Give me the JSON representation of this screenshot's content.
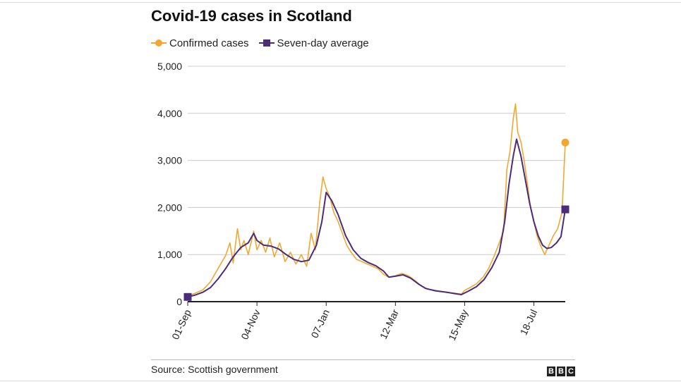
{
  "header": {
    "title": "Covid-19 cases in Scotland"
  },
  "footer": {
    "source": "Source: Scottish government",
    "logo_letters": [
      "B",
      "B",
      "C"
    ]
  },
  "colors": {
    "confirmed": "#f0a830",
    "average": "#4b2c79",
    "grid": "#cccccc",
    "axis": "#222222"
  },
  "chart_data": {
    "type": "line",
    "title": "Covid-19 cases in Scotland",
    "xlabel": "",
    "ylabel": "",
    "ylim": [
      0,
      5000
    ],
    "y_ticks": [
      0,
      1000,
      2000,
      3000,
      4000,
      5000
    ],
    "y_tick_labels": [
      "0",
      "1,000",
      "2,000",
      "3,000",
      "4,000",
      "5,000"
    ],
    "x_ticks": [
      "2020-09-01",
      "2020-11-04",
      "2021-01-07",
      "2021-03-12",
      "2021-05-15",
      "2021-07-18"
    ],
    "x_tick_labels": [
      "01-Sep",
      "04-Nov",
      "07-Jan",
      "12-Mar",
      "15-May",
      "18-Jul"
    ],
    "x_range": [
      "2020-09-01",
      "2021-08-16"
    ],
    "grid": true,
    "legend": "top-left",
    "series": [
      {
        "name": "Confirmed cases",
        "marker": "circle",
        "points": [
          [
            "2020-09-01",
            120
          ],
          [
            "2020-09-08",
            180
          ],
          [
            "2020-09-15",
            250
          ],
          [
            "2020-09-22",
            420
          ],
          [
            "2020-09-29",
            700
          ],
          [
            "2020-10-06",
            980
          ],
          [
            "2020-10-10",
            1250
          ],
          [
            "2020-10-13",
            820
          ],
          [
            "2020-10-17",
            1550
          ],
          [
            "2020-10-20",
            1100
          ],
          [
            "2020-10-23",
            1300
          ],
          [
            "2020-10-27",
            1000
          ],
          [
            "2020-11-01",
            1500
          ],
          [
            "2020-11-04",
            1100
          ],
          [
            "2020-11-08",
            1300
          ],
          [
            "2020-11-12",
            1050
          ],
          [
            "2020-11-16",
            1350
          ],
          [
            "2020-11-20",
            950
          ],
          [
            "2020-11-25",
            1250
          ],
          [
            "2020-11-30",
            850
          ],
          [
            "2020-12-05",
            1050
          ],
          [
            "2020-12-10",
            800
          ],
          [
            "2020-12-15",
            1000
          ],
          [
            "2020-12-20",
            750
          ],
          [
            "2020-12-24",
            1450
          ],
          [
            "2020-12-28",
            1100
          ],
          [
            "2021-01-01",
            2100
          ],
          [
            "2021-01-04",
            2650
          ],
          [
            "2021-01-07",
            2400
          ],
          [
            "2021-01-10",
            2250
          ],
          [
            "2021-01-14",
            1900
          ],
          [
            "2021-01-18",
            1700
          ],
          [
            "2021-01-22",
            1450
          ],
          [
            "2021-01-26",
            1200
          ],
          [
            "2021-01-30",
            1050
          ],
          [
            "2021-02-04",
            900
          ],
          [
            "2021-02-09",
            850
          ],
          [
            "2021-02-14",
            800
          ],
          [
            "2021-02-19",
            750
          ],
          [
            "2021-02-24",
            700
          ],
          [
            "2021-03-01",
            580
          ],
          [
            "2021-03-06",
            520
          ],
          [
            "2021-03-12",
            550
          ],
          [
            "2021-03-18",
            600
          ],
          [
            "2021-03-24",
            550
          ],
          [
            "2021-03-30",
            450
          ],
          [
            "2021-04-05",
            330
          ],
          [
            "2021-04-12",
            260
          ],
          [
            "2021-04-20",
            230
          ],
          [
            "2021-04-28",
            200
          ],
          [
            "2021-05-06",
            180
          ],
          [
            "2021-05-12",
            160
          ],
          [
            "2021-05-15",
            240
          ],
          [
            "2021-05-20",
            300
          ],
          [
            "2021-05-26",
            380
          ],
          [
            "2021-06-01",
            520
          ],
          [
            "2021-06-06",
            700
          ],
          [
            "2021-06-11",
            950
          ],
          [
            "2021-06-16",
            1250
          ],
          [
            "2021-06-20",
            1500
          ],
          [
            "2021-06-23",
            2800
          ],
          [
            "2021-06-26",
            3200
          ],
          [
            "2021-06-29",
            3900
          ],
          [
            "2021-07-01",
            4200
          ],
          [
            "2021-07-03",
            3600
          ],
          [
            "2021-07-06",
            3400
          ],
          [
            "2021-07-09",
            3000
          ],
          [
            "2021-07-12",
            2500
          ],
          [
            "2021-07-15",
            2000
          ],
          [
            "2021-07-18",
            1700
          ],
          [
            "2021-07-21",
            1400
          ],
          [
            "2021-07-24",
            1200
          ],
          [
            "2021-07-28",
            1000
          ],
          [
            "2021-08-01",
            1200
          ],
          [
            "2021-08-05",
            1400
          ],
          [
            "2021-08-09",
            1550
          ],
          [
            "2021-08-13",
            1900
          ],
          [
            "2021-08-16",
            3380
          ]
        ]
      },
      {
        "name": "Seven-day average",
        "marker": "square",
        "points": [
          [
            "2020-09-01",
            100
          ],
          [
            "2020-09-08",
            140
          ],
          [
            "2020-09-15",
            200
          ],
          [
            "2020-09-22",
            300
          ],
          [
            "2020-09-29",
            480
          ],
          [
            "2020-10-06",
            700
          ],
          [
            "2020-10-13",
            950
          ],
          [
            "2020-10-20",
            1150
          ],
          [
            "2020-10-27",
            1250
          ],
          [
            "2020-11-01",
            1450
          ],
          [
            "2020-11-04",
            1300
          ],
          [
            "2020-11-10",
            1200
          ],
          [
            "2020-11-17",
            1180
          ],
          [
            "2020-11-24",
            1120
          ],
          [
            "2020-12-01",
            1000
          ],
          [
            "2020-12-08",
            900
          ],
          [
            "2020-12-15",
            850
          ],
          [
            "2020-12-22",
            880
          ],
          [
            "2020-12-29",
            1200
          ],
          [
            "2021-01-03",
            1700
          ],
          [
            "2021-01-07",
            2320
          ],
          [
            "2021-01-12",
            2150
          ],
          [
            "2021-01-18",
            1850
          ],
          [
            "2021-01-25",
            1400
          ],
          [
            "2021-02-01",
            1100
          ],
          [
            "2021-02-08",
            920
          ],
          [
            "2021-02-15",
            830
          ],
          [
            "2021-02-22",
            760
          ],
          [
            "2021-03-01",
            650
          ],
          [
            "2021-03-06",
            520
          ],
          [
            "2021-03-12",
            540
          ],
          [
            "2021-03-19",
            570
          ],
          [
            "2021-03-26",
            500
          ],
          [
            "2021-04-02",
            380
          ],
          [
            "2021-04-09",
            280
          ],
          [
            "2021-04-18",
            230
          ],
          [
            "2021-04-28",
            200
          ],
          [
            "2021-05-06",
            170
          ],
          [
            "2021-05-12",
            150
          ],
          [
            "2021-05-19",
            230
          ],
          [
            "2021-05-26",
            320
          ],
          [
            "2021-06-02",
            470
          ],
          [
            "2021-06-09",
            720
          ],
          [
            "2021-06-16",
            1050
          ],
          [
            "2021-06-21",
            1700
          ],
          [
            "2021-06-25",
            2500
          ],
          [
            "2021-06-29",
            3100
          ],
          [
            "2021-07-02",
            3450
          ],
          [
            "2021-07-06",
            3100
          ],
          [
            "2021-07-10",
            2600
          ],
          [
            "2021-07-14",
            2100
          ],
          [
            "2021-07-18",
            1700
          ],
          [
            "2021-07-22",
            1400
          ],
          [
            "2021-07-26",
            1200
          ],
          [
            "2021-07-30",
            1130
          ],
          [
            "2021-08-03",
            1150
          ],
          [
            "2021-08-08",
            1250
          ],
          [
            "2021-08-12",
            1380
          ],
          [
            "2021-08-16",
            1960
          ]
        ]
      }
    ]
  }
}
